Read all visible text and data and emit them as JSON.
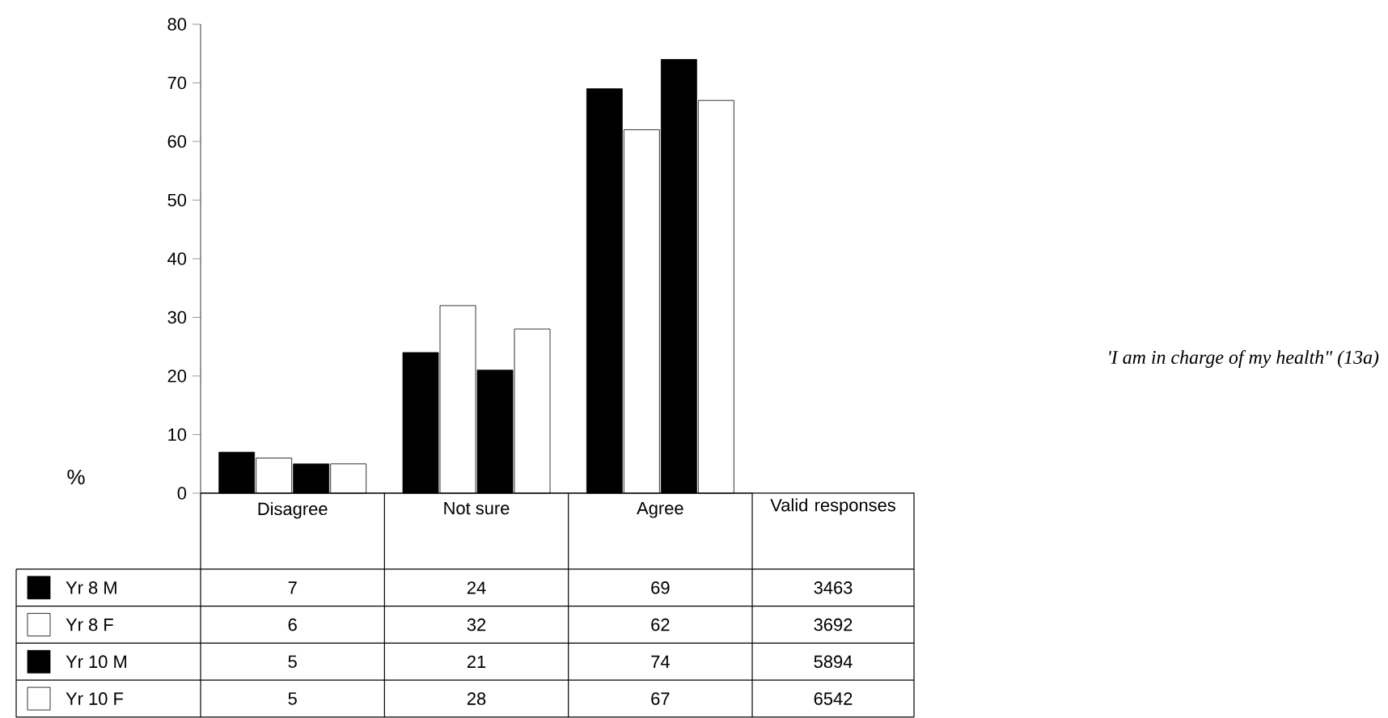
{
  "chart_data": {
    "type": "bar",
    "categories": [
      "Disagree",
      "Not sure",
      "Agree"
    ],
    "series": [
      {
        "name": "Yr 8 M",
        "color": "#000000",
        "values": [
          7,
          24,
          69
        ]
      },
      {
        "name": "Yr 8 F",
        "color": "#ffffff",
        "values": [
          6,
          32,
          62
        ]
      },
      {
        "name": "Yr 10 M",
        "color": "#000000",
        "values": [
          5,
          21,
          74
        ]
      },
      {
        "name": "Yr 10 F",
        "color": "#ffffff",
        "values": [
          5,
          28,
          67
        ]
      }
    ],
    "ylabel": "%",
    "ylim": [
      0,
      80
    ],
    "yticks": [
      0,
      10,
      20,
      30,
      40,
      50,
      60,
      70,
      80
    ],
    "data_labels": true,
    "legend": "bottom",
    "annotations": [
      "'I am in charge of my health\" (13a)",
      "Valid responses",
      "3463",
      "3692",
      "5894",
      "6542"
    ]
  }
}
